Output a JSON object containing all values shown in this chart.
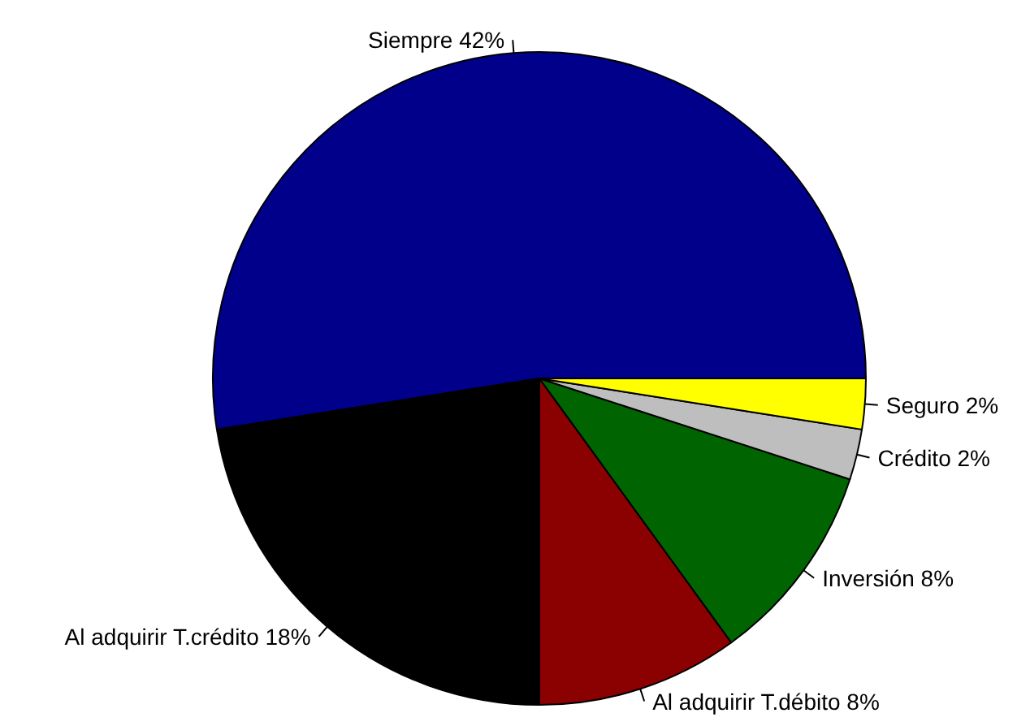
{
  "chart_data": {
    "type": "pie",
    "categories": [
      "Siempre",
      "Al adquirir T.crédito",
      "Al adquirir T.débito",
      "Inversión",
      "Crédito",
      "Seguro"
    ],
    "values": [
      42,
      18,
      8,
      8,
      2,
      2
    ],
    "value_labels": [
      "42%",
      "18%",
      "8%",
      "8%",
      "2%",
      "2%"
    ],
    "colors": [
      "#00008b",
      "#000000",
      "#8b0000",
      "#006400",
      "#bebebe",
      "#ffff00"
    ],
    "legend": false
  }
}
